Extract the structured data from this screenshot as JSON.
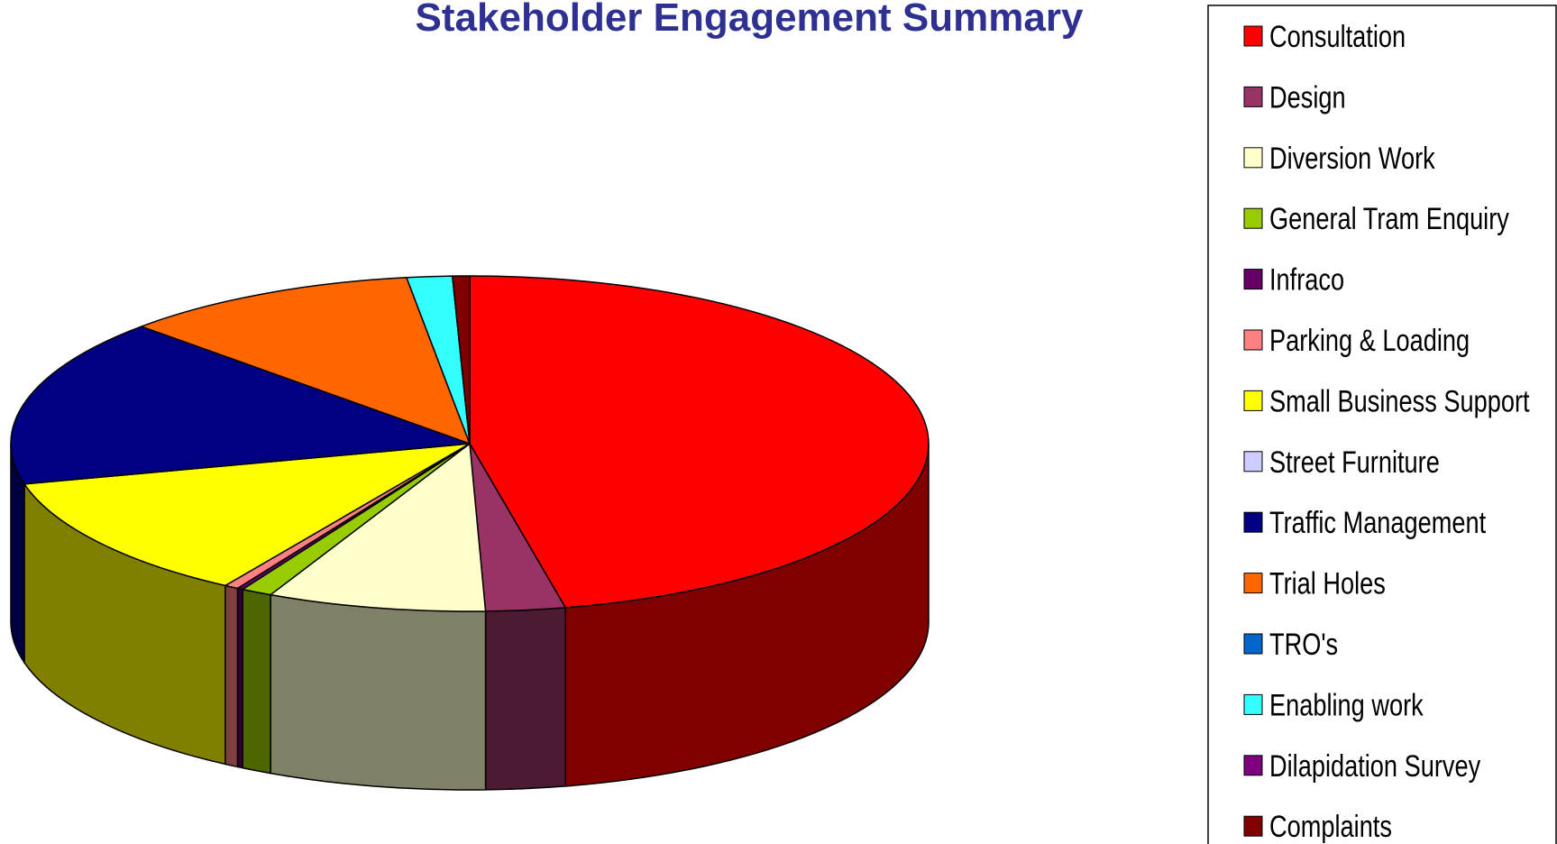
{
  "chart_data": {
    "type": "pie3d",
    "title": "Stakeholder Engagement Summary",
    "categories": [
      "Consultation",
      "Design",
      "Diversion Work",
      "General Tram Enquiry",
      "Infraco",
      "Parking & Loading",
      "Small Business Support",
      "Street Furniture",
      "Traffic Management",
      "Trial Holes",
      "TRO's",
      "Enabling work",
      "Dilapidation Survey",
      "Complaints"
    ],
    "values": [
      46.7,
      2.8,
      7.7,
      1.1,
      0.2,
      0.5,
      12.2,
      0,
      16.2,
      10.5,
      0,
      1.6,
      0,
      0.6
    ],
    "colors": [
      "#ff0000",
      "#993366",
      "#ffffcc",
      "#99cc00",
      "#660066",
      "#ff8080",
      "#ffff00",
      "#ccccff",
      "#000080",
      "#ff6600",
      "#0066cc",
      "#33ffff",
      "#800080",
      "#800000"
    ],
    "legend": "right"
  }
}
